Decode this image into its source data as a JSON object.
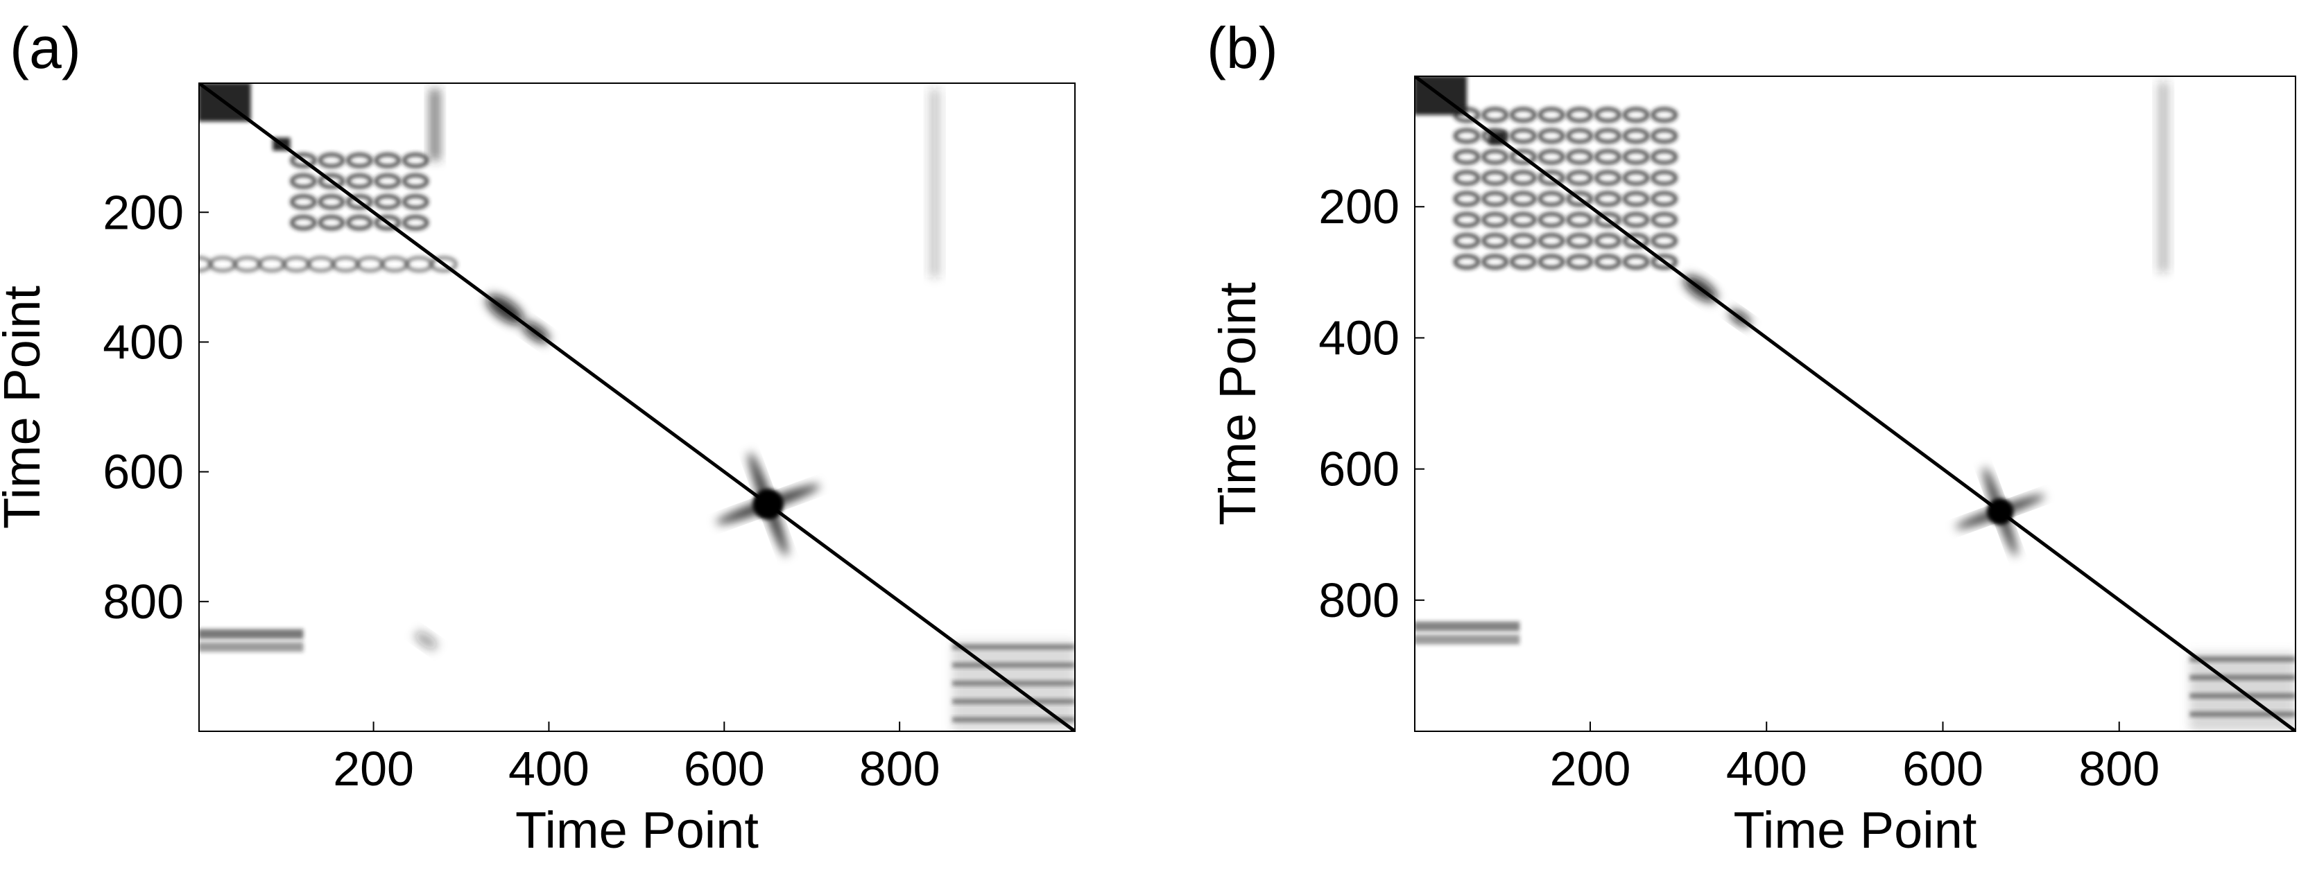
{
  "chart_data": [
    {
      "type": "heatmap",
      "panel_label": "(a)",
      "xlabel": "Time Point",
      "ylabel": "Time Point",
      "xlim": [
        1,
        1000
      ],
      "ylim": [
        1,
        1000
      ],
      "xticks": [
        200,
        400,
        600,
        800
      ],
      "yticks": [
        200,
        400,
        600,
        800
      ],
      "colormap": "white-to-black",
      "grid": false,
      "description_of_structure": {
        "main_diagonal": true,
        "features": [
          {
            "kind": "block",
            "center": [
              30,
              30
            ],
            "size": 60,
            "intensity": 0.9
          },
          {
            "kind": "block",
            "center": [
              95,
              95
            ],
            "size": 20,
            "intensity": 0.9
          },
          {
            "kind": "oscillatory_block",
            "x_range": [
              120,
              260
            ],
            "y_range": [
              120,
              230
            ],
            "intensity": 0.75
          },
          {
            "kind": "ring_band",
            "x_range": [
              0,
              300
            ],
            "y_range": [
              270,
              290
            ],
            "intensity": 0.6
          },
          {
            "kind": "vertical_streak",
            "x": 270,
            "y_range": [
              10,
              120
            ],
            "intensity": 0.6
          },
          {
            "kind": "blob",
            "center": [
              350,
              350
            ],
            "size": 25,
            "intensity": 0.85
          },
          {
            "kind": "blob",
            "center": [
              385,
              385
            ],
            "size": 18,
            "intensity": 0.85
          },
          {
            "kind": "star",
            "center": [
              650,
              650
            ],
            "size": 70,
            "intensity": 1.0
          },
          {
            "kind": "horizontal_band",
            "x_range": [
              0,
              120
            ],
            "y": 850,
            "intensity": 0.6
          },
          {
            "kind": "horizontal_band",
            "x_range": [
              0,
              120
            ],
            "y": 870,
            "intensity": 0.45
          },
          {
            "kind": "small_blob",
            "center": [
              260,
              860
            ],
            "size": 15,
            "intensity": 0.4
          },
          {
            "kind": "vertical_streak",
            "x": 840,
            "y_range": [
              10,
              300
            ],
            "intensity": 0.25
          },
          {
            "kind": "corner_block",
            "x_range": [
              860,
              1000
            ],
            "y_range": [
              860,
              1000
            ],
            "intensity": 0.5
          }
        ]
      }
    },
    {
      "type": "heatmap",
      "panel_label": "(b)",
      "xlabel": "Time Point",
      "ylabel": "Time Point",
      "xlim": [
        1,
        1000
      ],
      "ylim": [
        1,
        1000
      ],
      "xticks": [
        200,
        400,
        600,
        800
      ],
      "yticks": [
        200,
        400,
        600,
        800
      ],
      "colormap": "white-to-black",
      "grid": false,
      "description_of_structure": {
        "main_diagonal": true,
        "features": [
          {
            "kind": "block",
            "center": [
              30,
              30
            ],
            "size": 60,
            "intensity": 0.9
          },
          {
            "kind": "block",
            "center": [
              95,
              95
            ],
            "size": 20,
            "intensity": 0.9
          },
          {
            "kind": "oscillatory_block",
            "x_range": [
              60,
              300
            ],
            "y_range": [
              60,
              300
            ],
            "intensity": 0.75
          },
          {
            "kind": "blob",
            "center": [
              325,
              325
            ],
            "size": 22,
            "intensity": 0.85
          },
          {
            "kind": "blob",
            "center": [
              370,
              370
            ],
            "size": 14,
            "intensity": 0.85
          },
          {
            "kind": "star",
            "center": [
              665,
              665
            ],
            "size": 60,
            "intensity": 1.0
          },
          {
            "kind": "horizontal_band",
            "x_range": [
              0,
              120
            ],
            "y": 840,
            "intensity": 0.55
          },
          {
            "kind": "horizontal_band",
            "x_range": [
              0,
              120
            ],
            "y": 860,
            "intensity": 0.45
          },
          {
            "kind": "vertical_streak",
            "x": 850,
            "y_range": [
              10,
              300
            ],
            "intensity": 0.3
          },
          {
            "kind": "corner_block",
            "x_range": [
              880,
              1000
            ],
            "y_range": [
              880,
              1000
            ],
            "intensity": 0.55
          }
        ]
      }
    }
  ]
}
